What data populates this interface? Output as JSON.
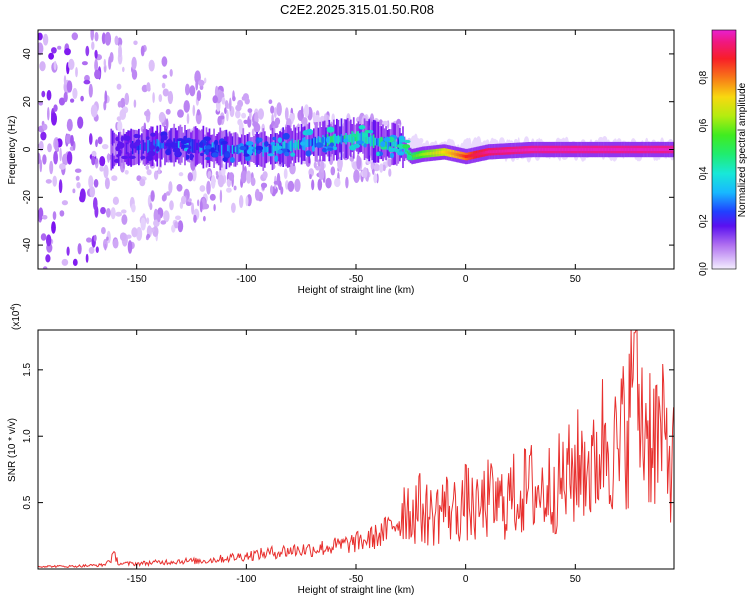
{
  "title": "C2E2.2025.315.01.50.R08",
  "colors": {
    "snr_line": "#e8302e",
    "axes": "#000000",
    "colormap": [
      "#f0e6ff",
      "#d8b8f8",
      "#b070f0",
      "#7a10f0",
      "#2222ee",
      "#1ab4ff",
      "#18e0c0",
      "#28e838",
      "#a8ec10",
      "#f8d810",
      "#f89018",
      "#f82020",
      "#f0186a",
      "#e820c8"
    ]
  },
  "chart_data": [
    {
      "type": "heatmap",
      "xlabel": "Height of straight line (km)",
      "ylabel": "Frequency (Hz)",
      "xlim": [
        -195,
        95
      ],
      "ylim": [
        -50,
        50
      ],
      "xticks": [
        -150,
        -100,
        -50,
        0,
        50
      ],
      "xtick_labels": [
        "-150",
        "-100",
        "-50",
        "0",
        "50"
      ],
      "yticks": [
        -40,
        -20,
        0,
        20,
        40
      ],
      "ytick_labels": [
        "-40",
        "-20",
        "0",
        "20",
        "40"
      ],
      "grid": false,
      "colorbar": {
        "label": "Normalized spectral amplitude",
        "range": [
          0.0,
          1.0
        ],
        "ticks": [
          0.0,
          0.2,
          0.4,
          0.6,
          0.8
        ],
        "tick_labels": [
          "0.0",
          "0.2",
          "0.4",
          "0.6",
          "0.8"
        ]
      },
      "ridge": {
        "x": [
          -195,
          -160,
          -150,
          -130,
          -110,
          -90,
          -70,
          -50,
          -40,
          -30,
          -25,
          -20,
          -10,
          0,
          10,
          30,
          50,
          70,
          95
        ],
        "frequency": [
          0,
          0,
          1,
          2,
          0,
          0,
          3,
          5,
          3,
          2,
          -3,
          -2,
          -1,
          -3,
          -1,
          0,
          0,
          0,
          0
        ],
        "amplitude": [
          0.05,
          0.15,
          0.3,
          0.35,
          0.35,
          0.38,
          0.42,
          0.45,
          0.45,
          0.4,
          0.5,
          0.55,
          0.65,
          0.8,
          0.92,
          0.95,
          0.95,
          0.95,
          0.95
        ]
      }
    },
    {
      "type": "line",
      "xlabel": "Height of straight line (km)",
      "ylabel": "SNR (10 * v/v)",
      "yscale_note": "(x10",
      "yscale_exp": "4",
      "xlim": [
        -195,
        95
      ],
      "ylim": [
        0,
        1.8
      ],
      "xticks": [
        -150,
        -100,
        -50,
        0,
        50
      ],
      "xtick_labels": [
        "-150",
        "-100",
        "-50",
        "0",
        "50"
      ],
      "yticks": [
        0.5,
        1.0,
        1.5
      ],
      "ytick_labels": [
        "0.5",
        "1.0",
        "1.5"
      ],
      "grid": false,
      "series": [
        {
          "x": [
            -195,
            -180,
            -165,
            -160,
            -158,
            -150,
            -140,
            -130,
            -120,
            -110,
            -100,
            -90,
            -80,
            -70,
            -60,
            -50,
            -45,
            -40,
            -35,
            -30,
            -28,
            -25,
            -22,
            -20,
            -15,
            -10,
            -5,
            0,
            5,
            10,
            15,
            20,
            25,
            30,
            35,
            40,
            45,
            50,
            55,
            58,
            60,
            65,
            70,
            72,
            75,
            77,
            80,
            85,
            90,
            95
          ],
          "values": [
            0.02,
            0.02,
            0.03,
            0.1,
            0.04,
            0.04,
            0.05,
            0.06,
            0.06,
            0.08,
            0.1,
            0.12,
            0.14,
            0.15,
            0.17,
            0.2,
            0.22,
            0.25,
            0.3,
            0.38,
            0.6,
            0.45,
            0.55,
            0.5,
            0.45,
            0.55,
            0.5,
            0.58,
            0.48,
            0.6,
            0.55,
            0.62,
            0.65,
            0.7,
            0.66,
            0.72,
            0.75,
            0.85,
            0.95,
            0.8,
            1.0,
            1.2,
            0.9,
            1.25,
            1.3,
            1.78,
            1.3,
            1.2,
            1.1,
            0.9
          ]
        }
      ]
    }
  ]
}
